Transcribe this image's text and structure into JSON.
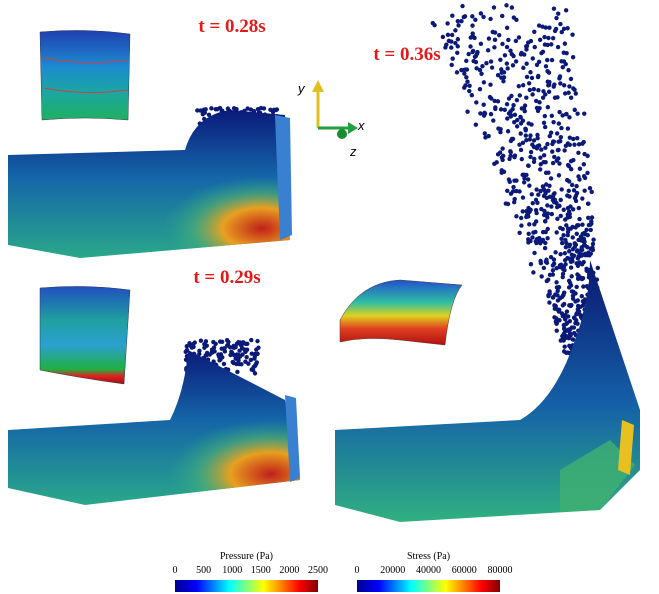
{
  "panels": [
    {
      "time_label": "t = 0.28s"
    },
    {
      "time_label": "t = 0.36s"
    },
    {
      "time_label": "t = 0.29s"
    }
  ],
  "axes": {
    "y": "y",
    "x": "x",
    "z": "z"
  },
  "colorbars": [
    {
      "title": "Pressure (Pa)",
      "ticks": [
        0,
        500,
        1000,
        1500,
        2000,
        2500
      ]
    },
    {
      "title": "Stress (Pa)",
      "ticks": [
        0,
        20000,
        40000,
        60000,
        80000
      ]
    }
  ]
}
